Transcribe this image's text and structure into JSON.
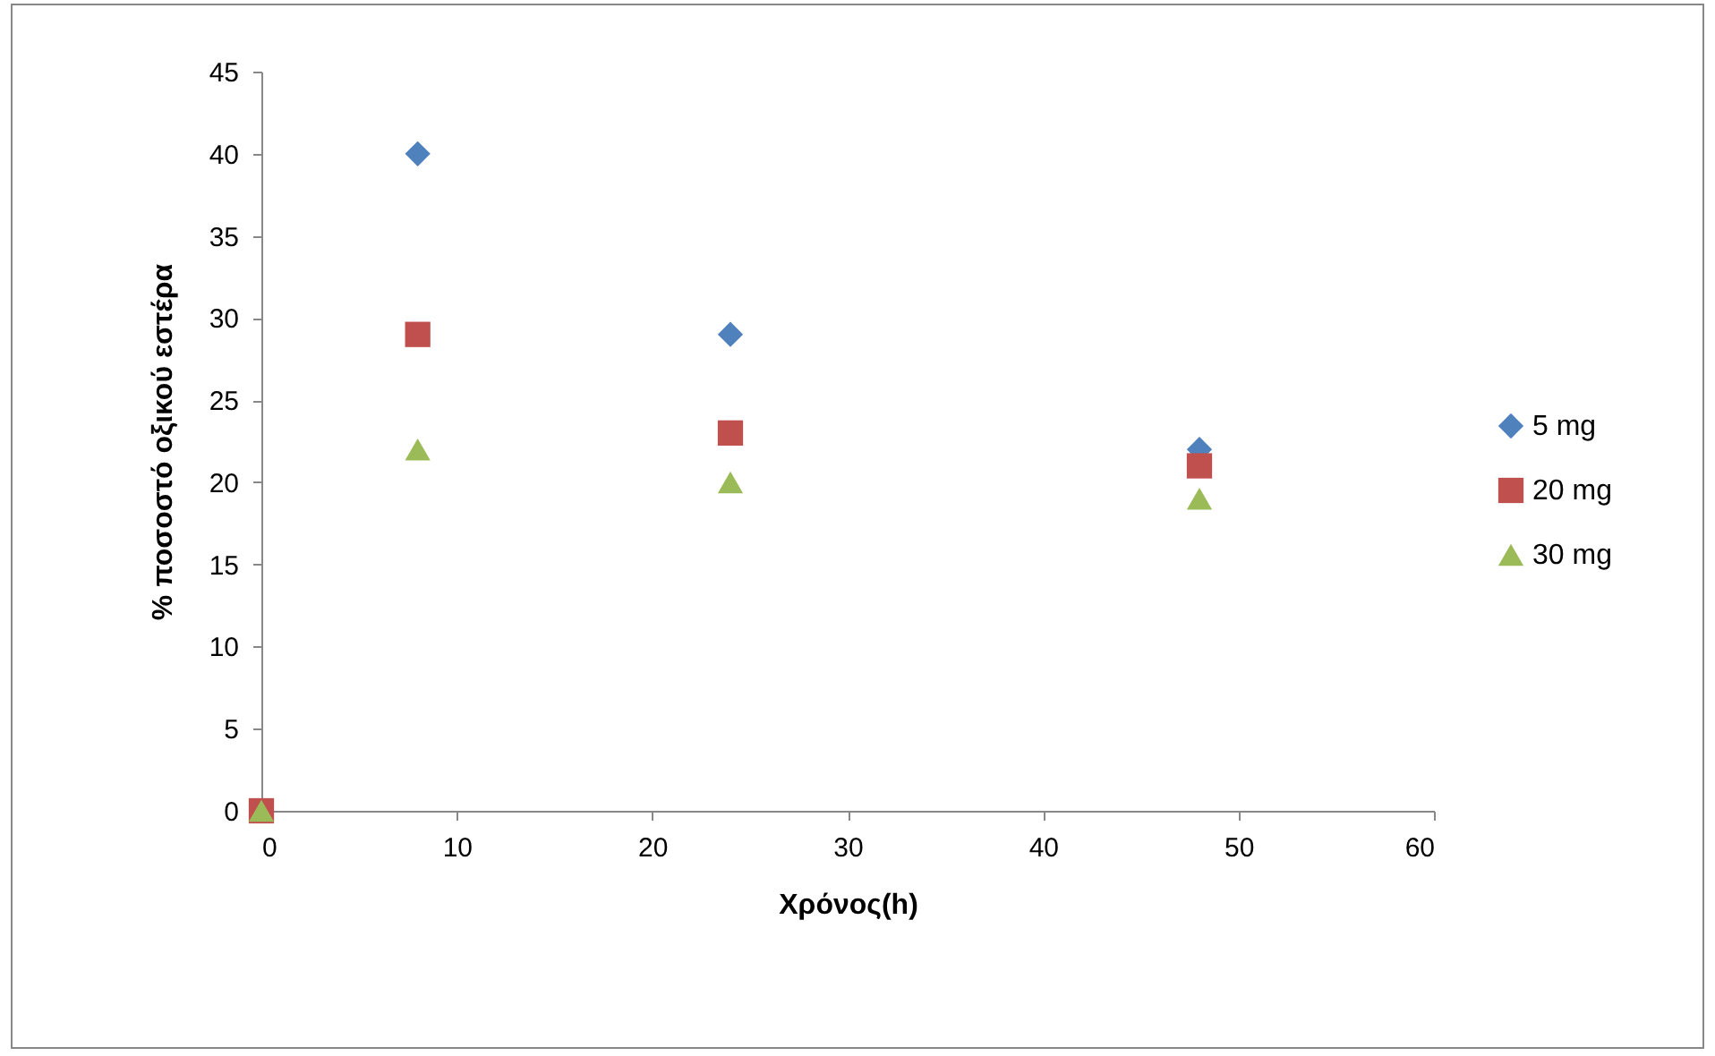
{
  "chart_data": {
    "type": "scatter",
    "xlabel": "Χρόνος(h)",
    "ylabel": "% ποσοστό οξικού εστέρα",
    "x": [
      0,
      8,
      24,
      48
    ],
    "series": [
      {
        "name": "5 mg",
        "color": "#4f81bd",
        "marker": "diamond",
        "values": [
          null,
          40,
          29,
          22
        ]
      },
      {
        "name": "20 mg",
        "color": "#c0504d",
        "marker": "square",
        "values": [
          0,
          29,
          23,
          21
        ]
      },
      {
        "name": "30 mg",
        "color": "#9bbb59",
        "marker": "triangle",
        "values": [
          0,
          22,
          20,
          19
        ]
      }
    ],
    "xlim": [
      0,
      60
    ],
    "xticks": [
      0,
      10,
      20,
      30,
      40,
      50,
      60
    ],
    "ylim": [
      0,
      45
    ],
    "yticks": [
      0,
      5,
      10,
      15,
      20,
      25,
      30,
      35,
      40,
      45
    ],
    "grid": false,
    "legend": "right"
  }
}
